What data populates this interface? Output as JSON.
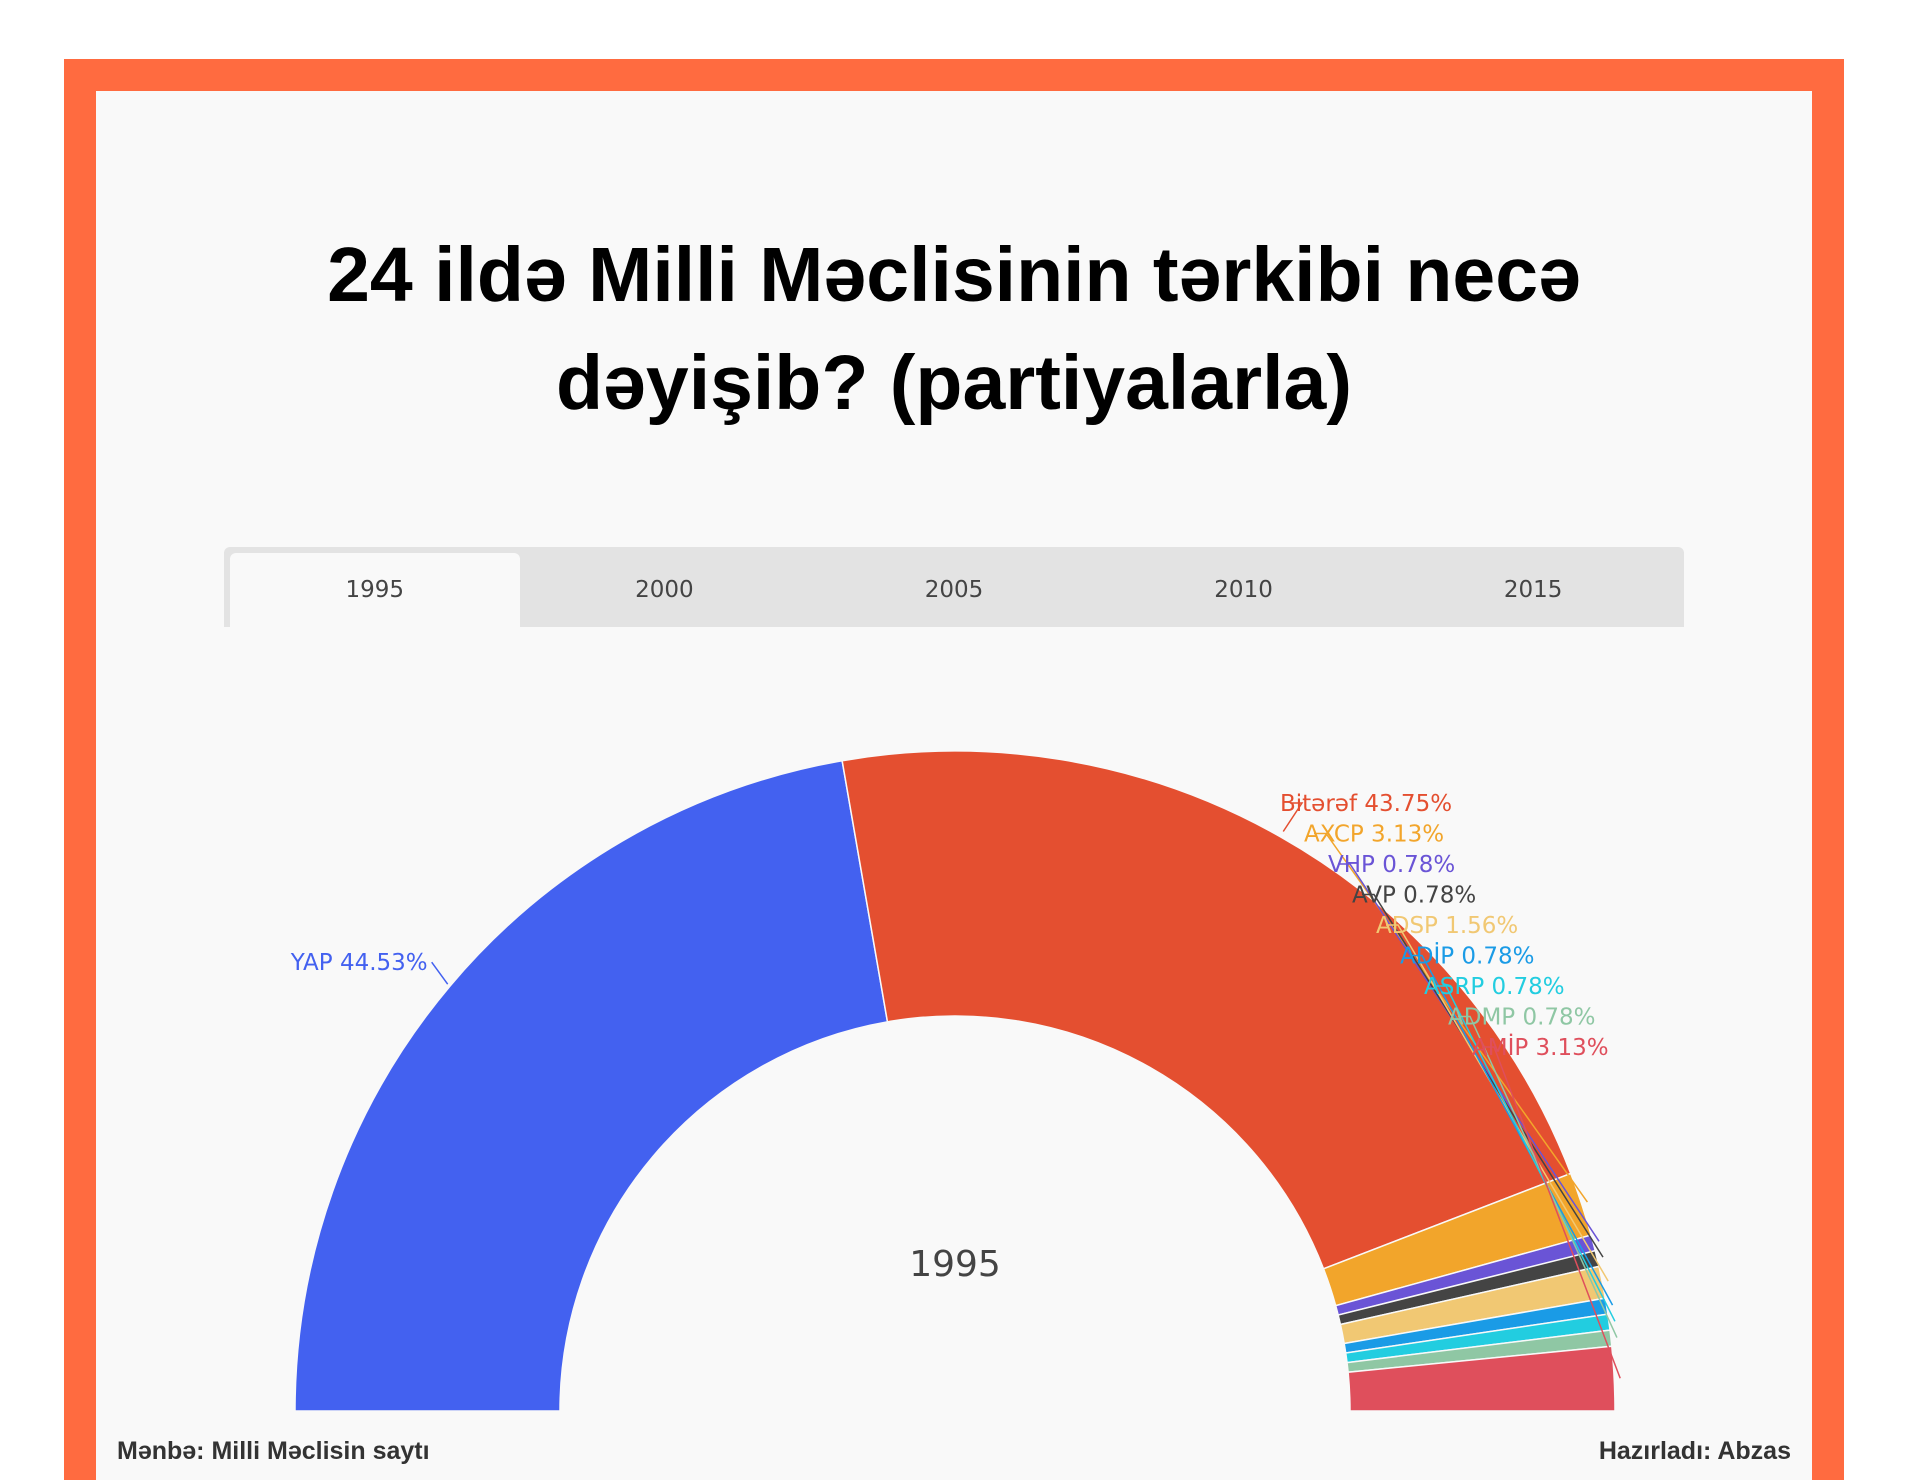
{
  "title_lines": [
    "24 ildə Milli Məclisinin tərkibi necə",
    "dəyişib? (partiyalarla)"
  ],
  "tabs": [
    "1995",
    "2000",
    "2005",
    "2010",
    "2015"
  ],
  "active_tab": 0,
  "footer": {
    "source": "Mənbə: Milli Məclisin saytı",
    "credit": "Hazırladı: Abzas"
  },
  "chart_data": {
    "type": "pie",
    "variant": "half-donut",
    "center_label": "1995",
    "slices": [
      {
        "name": "YAP",
        "value": 44.53,
        "label": "YAP 44.53%",
        "color": "#4361f0"
      },
      {
        "name": "Bitərəf",
        "value": 43.75,
        "label": "Bitərəf 43.75%",
        "color": "#e44f30"
      },
      {
        "name": "AXCP",
        "value": 3.13,
        "label": "AXCP 3.13%",
        "color": "#f2a52b"
      },
      {
        "name": "VHP",
        "value": 0.78,
        "label": "VHP 0.78%",
        "color": "#6a54d6"
      },
      {
        "name": "AVP",
        "value": 0.78,
        "label": "AVP 0.78%",
        "color": "#444444"
      },
      {
        "name": "ADSP",
        "value": 1.56,
        "label": "ADSP 1.56%",
        "color": "#f1c873"
      },
      {
        "name": "ADİP",
        "value": 0.78,
        "label": "ADİP 0.78%",
        "color": "#1a9be6"
      },
      {
        "name": "ASRP",
        "value": 0.78,
        "label": "ASRP 0.78%",
        "color": "#22cde0"
      },
      {
        "name": "ADMP",
        "value": 0.78,
        "label": "ADMP 0.78%",
        "color": "#8fc7a4"
      },
      {
        "name": "AMİP",
        "value": 3.13,
        "label": "AMİP 3.13%",
        "color": "#df4f5c"
      }
    ]
  }
}
